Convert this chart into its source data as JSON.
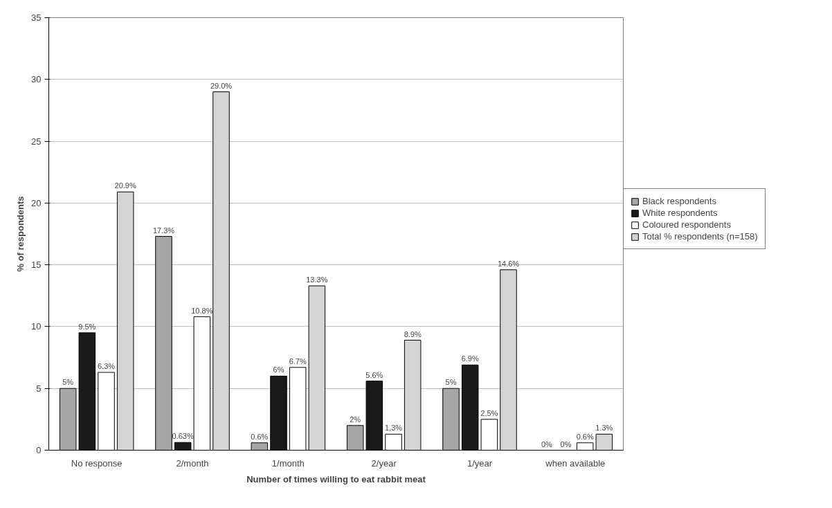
{
  "chart_data": {
    "type": "bar",
    "xlabel": "Number of times willing to eat rabbit meat",
    "ylabel": "% of respondents",
    "categories": [
      "No response",
      "2/month",
      "1/month",
      "2/year",
      "1/year",
      "when available"
    ],
    "series": [
      {
        "name": "Black respondents",
        "color": "#a6a6a6",
        "values": [
          5,
          17.3,
          0.6,
          2,
          5,
          0
        ],
        "value_labels": [
          "5%",
          "17.3%",
          "0.6%",
          "2%",
          "5%",
          "0%"
        ]
      },
      {
        "name": "White respondents",
        "color": "#1a1a1a",
        "values": [
          9.5,
          0.63,
          6,
          5.6,
          6.9,
          0
        ],
        "value_labels": [
          "9.5%",
          "0.63%",
          "6%",
          "5.6%",
          "6.9%",
          "0%"
        ]
      },
      {
        "name": "Coloured respondents",
        "color": "#ffffff",
        "values": [
          6.3,
          10.8,
          6.7,
          1.3,
          2.5,
          0.6
        ],
        "value_labels": [
          "6.3%",
          "10.8%",
          "6.7%",
          "1.3%",
          "2.5%",
          "0.6%"
        ]
      },
      {
        "name": "Total % respondents (n=158)",
        "color": "#d4d4d4",
        "values": [
          20.9,
          29.0,
          13.3,
          8.9,
          14.6,
          1.3
        ],
        "value_labels": [
          "20.9%",
          "29.0%",
          "13.3%",
          "8.9%",
          "14.6%",
          "1.3%"
        ]
      }
    ],
    "ylim": [
      0,
      35
    ],
    "yticks": [
      0,
      5,
      10,
      15,
      20,
      25,
      30,
      35
    ],
    "grid": "y",
    "legend": "right"
  }
}
